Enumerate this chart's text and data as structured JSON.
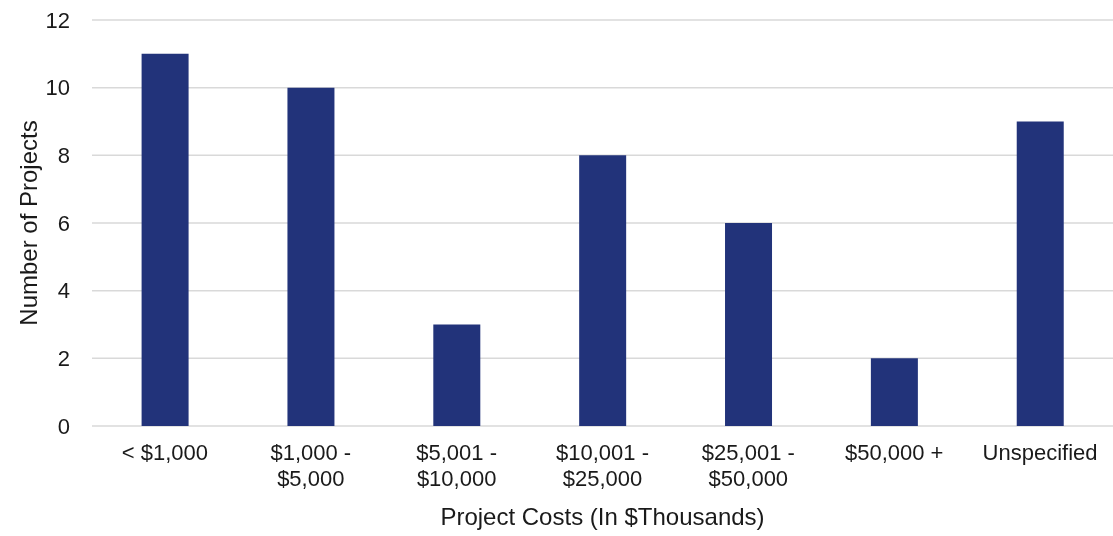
{
  "chart_data": {
    "type": "bar",
    "xlabel": "Project Costs (In $Thousands)",
    "ylabel": "Number of Projects",
    "categories": [
      "< $1,000",
      "$1,000 - $5,000",
      "$5,001 - $10,000",
      "$10,001 - $25,000",
      "$25,001 - $50,000",
      "$50,000 +",
      "Unspecified"
    ],
    "values": [
      11,
      10,
      3,
      8,
      6,
      2,
      9
    ],
    "color": "#22337a",
    "ylim": [
      0,
      12
    ],
    "yticks": [
      0,
      2,
      4,
      6,
      8,
      10,
      12
    ],
    "grid": "y"
  }
}
